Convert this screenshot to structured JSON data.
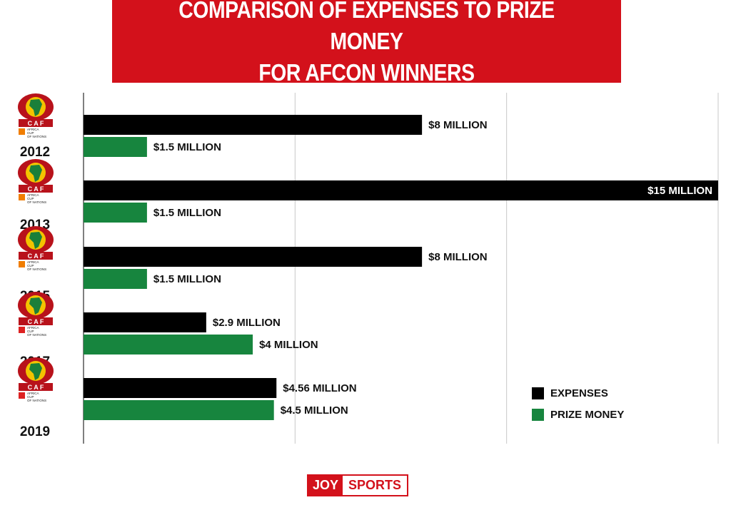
{
  "header": {
    "title_line1": "COMPARISON OF EXPENSES TO PRIZE MONEY",
    "title_line2": "FOR AFCON WINNERS"
  },
  "colors": {
    "banner": "#d3111b",
    "expenses": "#000000",
    "prize_money": "#17853e"
  },
  "chart_data": {
    "type": "bar",
    "orientation": "horizontal",
    "categories": [
      "2012",
      "2013",
      "2015",
      "2017",
      "2019"
    ],
    "series": [
      {
        "name": "EXPENSES",
        "values": [
          8,
          15,
          8,
          2.9,
          4.56
        ],
        "labels": [
          "$8 MILLION",
          "$15 MILLION",
          "$8 MILLION",
          "$2.9 MILLION",
          "$4.56 MILLION"
        ]
      },
      {
        "name": "PRIZE MONEY",
        "values": [
          1.5,
          1.5,
          1.5,
          4,
          4.5
        ],
        "labels": [
          "$1.5 MILLION",
          "$1.5 MILLION",
          "$1.5 MILLION",
          "$4 MILLION",
          "$4.5 MILLION"
        ]
      }
    ],
    "xlim": [
      0,
      15
    ],
    "grid": true,
    "legend_position": "bottom-right"
  },
  "legend": {
    "items": [
      {
        "label": "EXPENSES",
        "color": "#000000"
      },
      {
        "label": "PRIZE MONEY",
        "color": "#17853e"
      }
    ]
  },
  "years": [
    {
      "year": "2012",
      "logo_text": "CAF",
      "logo_sub1": "AFRICA",
      "logo_sub2": "CUP",
      "logo_sub3": "OF NATIONS"
    },
    {
      "year": "2013",
      "logo_text": "CAF",
      "logo_sub1": "AFRICA",
      "logo_sub2": "CUP",
      "logo_sub3": "OF NATIONS"
    },
    {
      "year": "2015",
      "logo_text": "CAF",
      "logo_sub1": "AFRICA",
      "logo_sub2": "CUP",
      "logo_sub3": "OF NATIONS"
    },
    {
      "year": "2017",
      "logo_text": "CAF",
      "logo_sub1": "AFRICA",
      "logo_sub2": "CUP",
      "logo_sub3": "OF NATIONS"
    },
    {
      "year": "2019",
      "logo_text": "CAF",
      "logo_sub1": "AFRICA",
      "logo_sub2": "CUP",
      "logo_sub3": "OF NATIONS"
    }
  ],
  "footer": {
    "brand_part1": "JOY",
    "brand_part2": "SPORTS"
  }
}
